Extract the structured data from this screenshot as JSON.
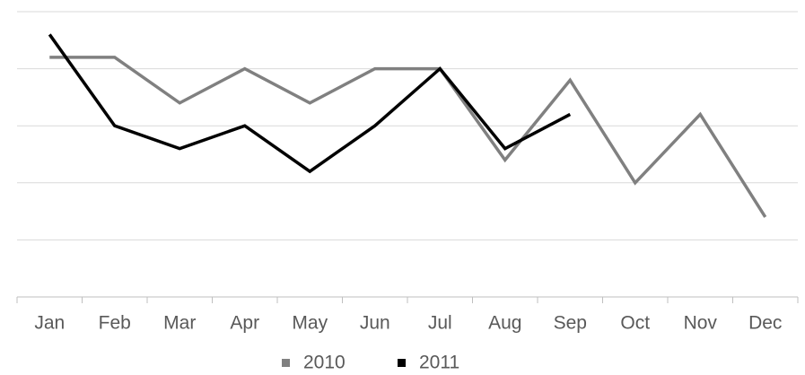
{
  "chart_data": {
    "type": "line",
    "categories": [
      "Jan",
      "Feb",
      "Mar",
      "Apr",
      "May",
      "Jun",
      "Jul",
      "Aug",
      "Sep",
      "Oct",
      "Nov",
      "Dec"
    ],
    "series": [
      {
        "name": "2010",
        "color": "#808080",
        "values": [
          4.2,
          4.2,
          3.4,
          4.0,
          3.4,
          4.0,
          4.0,
          2.4,
          3.8,
          2.0,
          3.2,
          1.4
        ]
      },
      {
        "name": "2011",
        "color": "#000000",
        "values": [
          4.6,
          3.0,
          2.6,
          3.0,
          2.2,
          3.0,
          4.0,
          2.6,
          3.2,
          null,
          null,
          null
        ]
      }
    ],
    "ylim": [
      0,
      5
    ],
    "yticks": [
      0,
      1,
      2,
      3,
      4,
      5
    ],
    "grid": true,
    "legend": "bottom"
  }
}
